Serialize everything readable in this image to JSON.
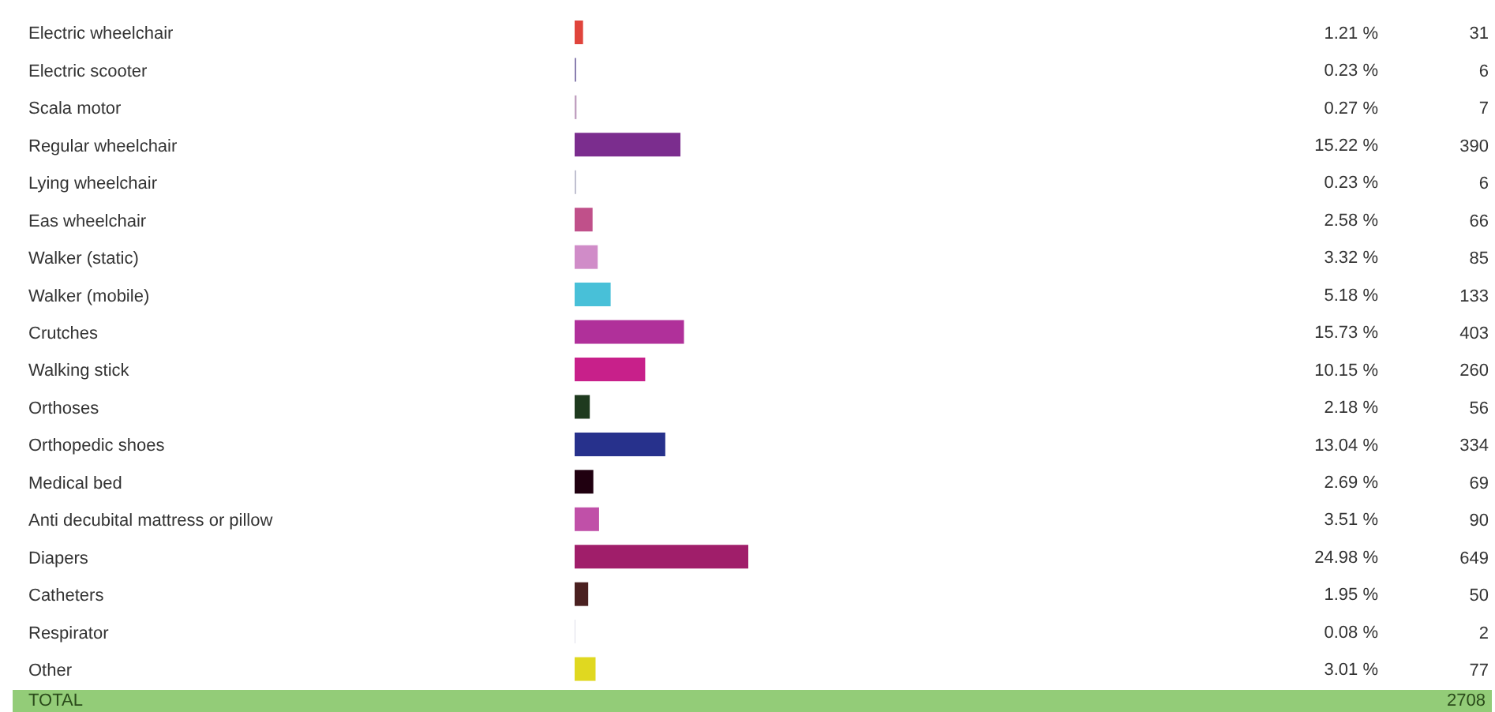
{
  "chart_data": {
    "type": "bar",
    "orientation": "horizontal",
    "categories": [
      "Electric wheelchair",
      "Electric scooter",
      "Scala motor",
      "Regular wheelchair",
      "Lying wheelchair",
      "Eas wheelchair",
      "Walker (static)",
      "Walker (mobile)",
      "Crutches",
      "Walking stick",
      "Orthoses",
      "Orthopedic shoes",
      "Medical bed",
      "Anti decubital mattress or pillow",
      "Diapers",
      "Catheters",
      "Respirator",
      "Other"
    ],
    "values": [
      1.21,
      0.23,
      0.27,
      15.22,
      0.23,
      2.58,
      3.32,
      5.18,
      15.73,
      10.15,
      2.18,
      13.04,
      2.69,
      3.51,
      24.98,
      1.95,
      0.08,
      3.01
    ],
    "value_labels": [
      "1.21 %",
      "0.23 %",
      "0.27 %",
      "15.22 %",
      "0.23 %",
      "2.58 %",
      "3.32 %",
      "5.18 %",
      "15.73 %",
      "10.15 %",
      "2.18 %",
      "13.04 %",
      "2.69 %",
      "3.51 %",
      "24.98 %",
      "1.95 %",
      "0.08 %",
      "3.01 %"
    ],
    "colors": [
      "#e0443c",
      "#8a7fb0",
      "#c0a0c0",
      "#7b2d8e",
      "#c0c0d0",
      "#c0508a",
      "#d08cc8",
      "#48c0d8",
      "#b0309a",
      "#c8208a",
      "#1e3a1e",
      "#27318c",
      "#200010",
      "#c050a8",
      "#a01e6a",
      "#4a2020",
      "#d0d0e0",
      "#e0d820"
    ],
    "tick_labels": "y",
    "annotations": [
      "31",
      "6",
      "7",
      "390",
      "6",
      "66",
      "85",
      "133",
      "403",
      "260",
      "56",
      "334",
      "69",
      "90",
      "649",
      "50",
      "2",
      "77",
      "TOTAL",
      "2708"
    ]
  }
}
